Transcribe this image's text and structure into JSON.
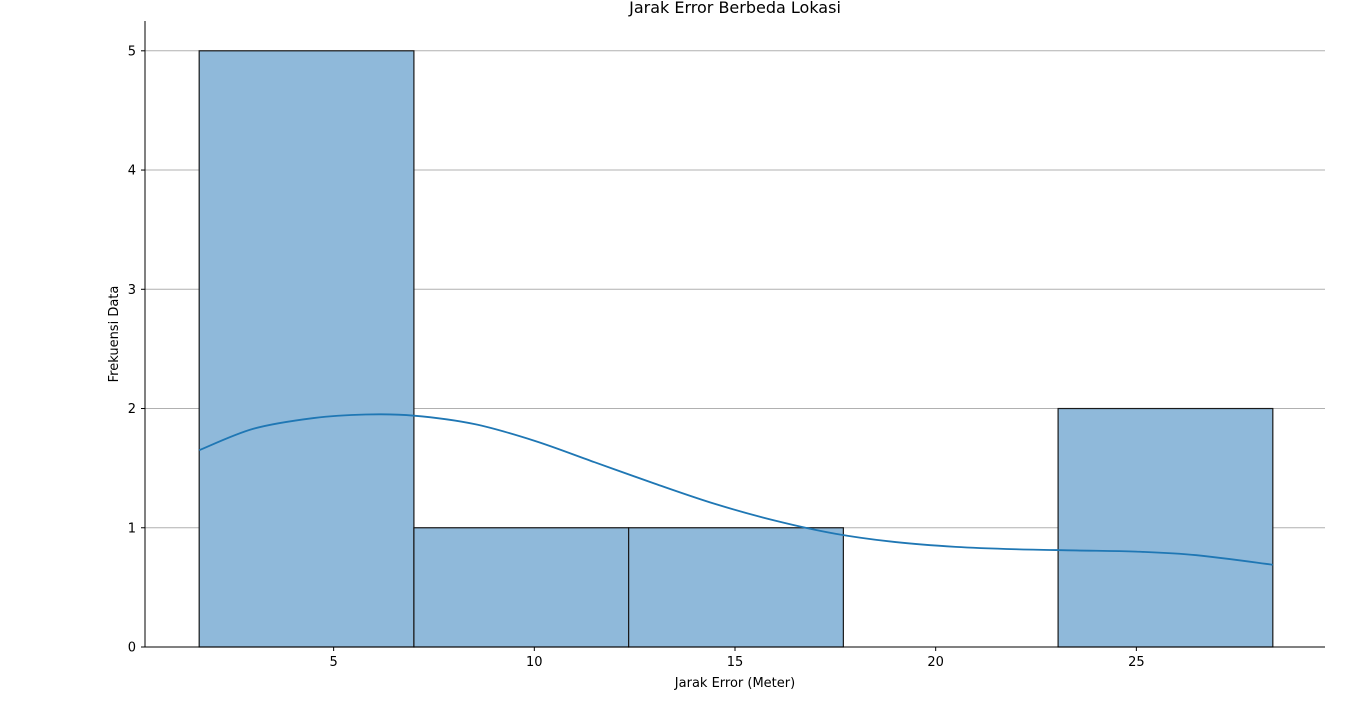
{
  "chart_data": {
    "type": "histogram",
    "title": "Jarak Error Berbeda Lokasi",
    "xlabel": "Jarak Error (Meter)",
    "ylabel": "Frekuensi Data",
    "xlim": [
      0.3,
      29.7
    ],
    "ylim": [
      0,
      5.25
    ],
    "xticks": [
      5,
      10,
      15,
      20,
      25
    ],
    "yticks": [
      0,
      1,
      2,
      3,
      4,
      5
    ],
    "grid": "y-axis",
    "bins": [
      {
        "start": 1.65,
        "end": 7.0,
        "count": 5
      },
      {
        "start": 7.0,
        "end": 12.35,
        "count": 1
      },
      {
        "start": 12.35,
        "end": 17.7,
        "count": 1
      },
      {
        "start": 17.7,
        "end": 23.05,
        "count": 0
      },
      {
        "start": 23.05,
        "end": 28.4,
        "count": 2
      }
    ],
    "kde": {
      "name": "",
      "x": [
        1.65,
        3.0,
        4.5,
        5.8,
        7.0,
        8.5,
        10.0,
        11.5,
        13.0,
        14.5,
        16.0,
        17.5,
        19.0,
        20.5,
        22.0,
        23.5,
        25.0,
        26.5,
        28.4
      ],
      "y": [
        1.65,
        1.83,
        1.92,
        1.95,
        1.94,
        1.87,
        1.73,
        1.55,
        1.37,
        1.2,
        1.06,
        0.95,
        0.88,
        0.84,
        0.82,
        0.81,
        0.8,
        0.77,
        0.69
      ]
    },
    "colors": {
      "bar_fill": "#8fb9da",
      "bar_edge": "#1a1a1a",
      "kde_line": "#1f77b4",
      "grid": "#b0b0b0",
      "axis": "#000000"
    }
  }
}
